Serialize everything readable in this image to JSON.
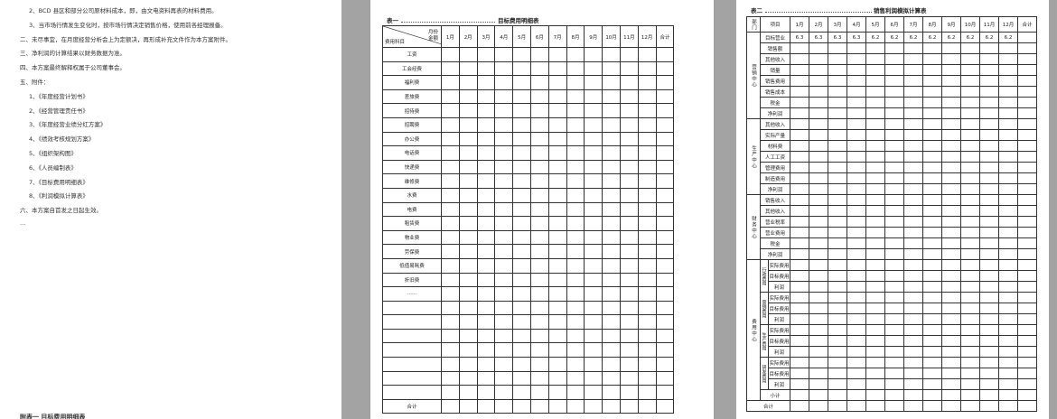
{
  "page1": {
    "lines": [
      "2、BCD 县区和部分公司原材料成本，即，由文电资料再表的材料费用。",
      "3、当市场行情发生变化时，按市场行情决定销售价格，使用前各经理报备。",
      "二、未尽事宜，在月度经营分析会上为定额决，再形成补充文件作为本方案附件。",
      "三、净利润的计算结果以财务数据为准。",
      "四、本方案最终解释权属于公司董事会。",
      "五、附件：",
      "1、《年度经营计划书》",
      "2、《经营管理责任书》",
      "3、《年度经营业绩分红方案》",
      "4、《绩效考核规划方案》",
      "5、《组织架构图》",
      "6、《人员编制表》",
      "7、《目标费用明细表》",
      "8、《利润模拟计算表》",
      "六、本方案自首发之日起生效。",
      "…"
    ],
    "footer_title": "附表一   目标费用明细表"
  },
  "table1": {
    "label": "表一",
    "title": "目标费用明细表",
    "corner_top": "月份",
    "corner_left": "费用科目",
    "corner_right": "金额",
    "columns": [
      "1月",
      "2月",
      "3月",
      "4月",
      "5月",
      "6月",
      "7月",
      "8月",
      "9月",
      "10月",
      "11月",
      "12月",
      "合计"
    ],
    "rows": [
      "工资",
      "工会经费",
      "福利费",
      "差旅费",
      "招待费",
      "招聘费",
      "办公费",
      "电话费",
      "快递费",
      "维修费",
      "水费",
      "电费",
      "租赁费",
      "物业费",
      "劳保费",
      "低值易耗费",
      "折旧费",
      "……"
    ],
    "total_label": "合计"
  },
  "table2": {
    "label": "表二",
    "title": "销售利润模拟计算表",
    "head": [
      "部门",
      "项目"
    ],
    "columns": [
      "1月",
      "2月",
      "3月",
      "4月",
      "5月",
      "6月",
      "7月",
      "8月",
      "9月",
      "10月",
      "11月",
      "12月",
      "合计"
    ],
    "sections": [
      {
        "name": "营销中心",
        "rows": [
          {
            "item": "目标营业",
            "values": [
              6.3,
              6.3,
              6.3,
              6.3,
              6.2,
              6.2,
              6.2,
              6.2,
              6.2,
              6.2,
              6.2,
              6.2
            ]
          },
          {
            "item": "销售额"
          },
          {
            "item": "其他收入"
          },
          {
            "item": "销量"
          },
          {
            "item": "销售费用"
          },
          {
            "item": "销售成本"
          },
          {
            "item": "税金"
          },
          {
            "item": "净利润"
          }
        ]
      },
      {
        "name": "生产中心",
        "rows": [
          {
            "item": "其他收入"
          },
          {
            "item": "实际产量"
          },
          {
            "item": "材料费"
          },
          {
            "item": "人工工资"
          },
          {
            "item": "管理费用"
          },
          {
            "item": "制造费用"
          },
          {
            "item": "净利润"
          }
        ]
      },
      {
        "name": "财务中心",
        "rows": [
          {
            "item": "销售收入"
          },
          {
            "item": "其他收入"
          },
          {
            "item": "营业税率"
          },
          {
            "item": "营业费用"
          },
          {
            "item": "税金"
          },
          {
            "item": "净利润"
          }
        ]
      }
    ],
    "cost_section": {
      "name": "费用中心",
      "groups": [
        {
          "name": "行政费用",
          "items": [
            "实际费用",
            "目标费用",
            "利润"
          ]
        },
        {
          "name": "营销费用",
          "items": [
            "实际费用",
            "目标费用",
            "利润"
          ]
        },
        {
          "name": "生产费用",
          "items": [
            "实际费用",
            "目标费用",
            "利润"
          ]
        },
        {
          "name": "研发费用",
          "items": [
            "实际费用",
            "目标费用",
            "利润"
          ]
        }
      ],
      "subtotal": "小计"
    },
    "total_label": "合计"
  }
}
